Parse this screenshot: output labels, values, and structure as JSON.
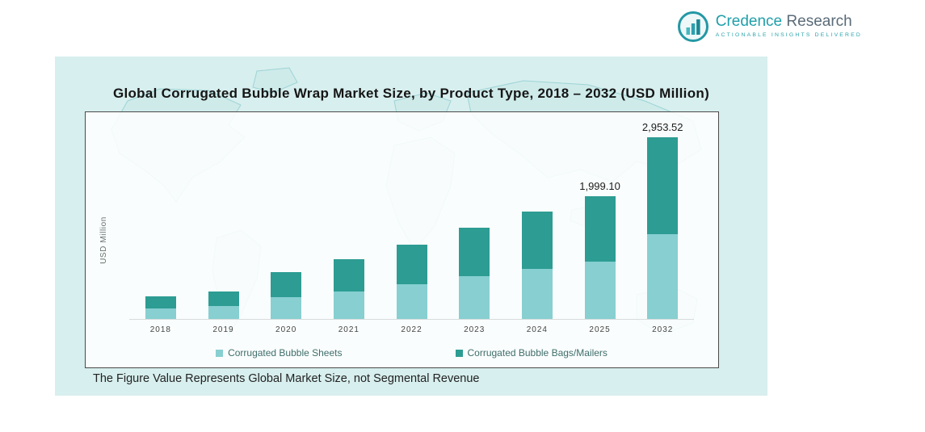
{
  "header": {
    "logo": {
      "brand_primary": "Credence",
      "brand_secondary": "Research",
      "tagline": "Actionable Insights Delivered"
    }
  },
  "figure": {
    "title": "Global Corrugated Bubble Wrap Market Size, by Product Type, 2018 – 2032 (USD Million)",
    "footnote": "The Figure Value Represents Global Market Size, not Segmental Revenue"
  },
  "colors": {
    "panel_bg": "#d7efee",
    "sheets_teal_light": "#87cfd1",
    "bags_teal_dark": "#2d9c93",
    "accent_teal": "#1f9faa"
  },
  "chart_data": {
    "type": "bar",
    "stacked": true,
    "title": "Global Corrugated Bubble Wrap Market Size, by Product Type, 2018 – 2032 (USD Million)",
    "xlabel": "",
    "ylabel": "USD Million",
    "categories": [
      "2018",
      "2019",
      "2020",
      "2021",
      "2022",
      "2023",
      "2024",
      "2025",
      "2032"
    ],
    "series": [
      {
        "name": "Corrugated Bubble Sheets",
        "color": "#87cfd1",
        "values": [
          170,
          205,
          350,
          450,
          565,
          690,
          810,
          935.0,
          1380.0
        ]
      },
      {
        "name": "Corrugated Bubble Bags/Mailers",
        "color": "#2d9c93",
        "values": [
          195,
          240,
          405,
          520,
          650,
          795,
          930,
          1064.1,
          1573.52
        ]
      }
    ],
    "totals": [
      365,
      445,
      755,
      970,
      1215,
      1485,
      1740,
      1999.1,
      2953.52
    ],
    "data_labels": {
      "2025": "1,999.10",
      "2032": "2,953.52"
    },
    "ylim": [
      0,
      3150
    ],
    "grid": false,
    "legend_position": "bottom"
  }
}
